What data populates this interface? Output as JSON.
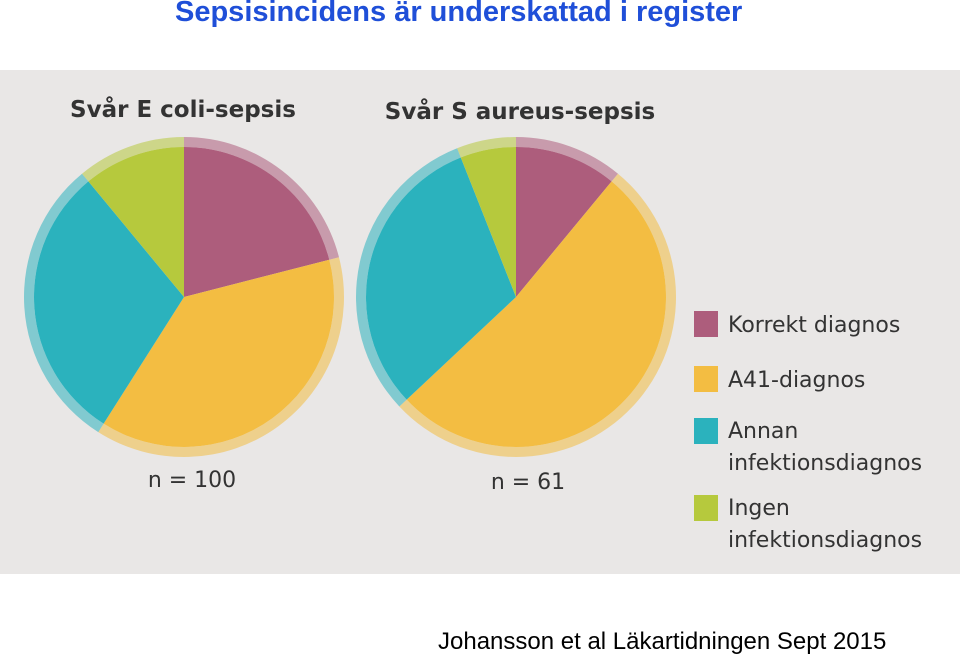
{
  "page": {
    "title": "Sepsisincidens är underskattad i register",
    "citation": "Johansson et al Läkartidningen Sept 2015"
  },
  "colors": {
    "korrekt": "#ad5d7c",
    "a41": "#f3bd42",
    "annan": "#2bb2bd",
    "ingen": "#b6c93d",
    "panel": "#e9e7e6"
  },
  "chart_data": [
    {
      "type": "pie",
      "title": "Svår E coli-sepsis",
      "n_label": "n = 100",
      "slices": [
        {
          "label": "Korrekt diagnos",
          "value": 21
        },
        {
          "label": "A41-diagnos",
          "value": 38
        },
        {
          "label": "Annan infektionsdiagnos",
          "value": 30
        },
        {
          "label": "Ingen infektionsdiagnos",
          "value": 11
        }
      ]
    },
    {
      "type": "pie",
      "title": "Svår S aureus-sepsis",
      "n_label": "n = 61",
      "slices": [
        {
          "label": "Korrekt diagnos",
          "value": 11
        },
        {
          "label": "A41-diagnos",
          "value": 52
        },
        {
          "label": "Annan infektionsdiagnos",
          "value": 31
        },
        {
          "label": "Ingen infektionsdiagnos",
          "value": 6
        }
      ]
    }
  ],
  "legend": {
    "items": [
      {
        "key": "korrekt",
        "lines": [
          "Korrekt diagnos"
        ]
      },
      {
        "key": "a41",
        "lines": [
          "A41-diagnos"
        ]
      },
      {
        "key": "annan",
        "lines": [
          "Annan",
          "infektionsdiagnos"
        ]
      },
      {
        "key": "ingen",
        "lines": [
          "Ingen",
          "infektionsdiagnos"
        ]
      }
    ]
  }
}
